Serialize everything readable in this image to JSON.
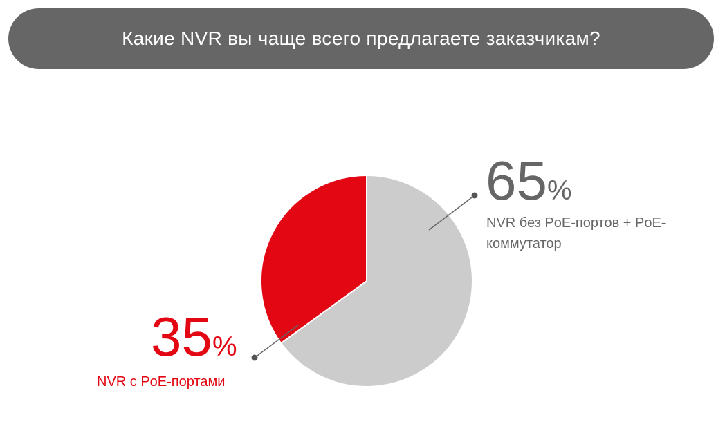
{
  "chart_data": {
    "type": "pie",
    "title": "Какие NVR вы чаще всего предлагаете заказчикам?",
    "categories": [
      "NVR без PoE-портов + PoE-коммутатор",
      "NVR с PoE-портами"
    ],
    "values": [
      65,
      35
    ],
    "value_labels": [
      "65%",
      "35%"
    ],
    "colors": [
      "#cccccc",
      "#e30613"
    ]
  }
}
